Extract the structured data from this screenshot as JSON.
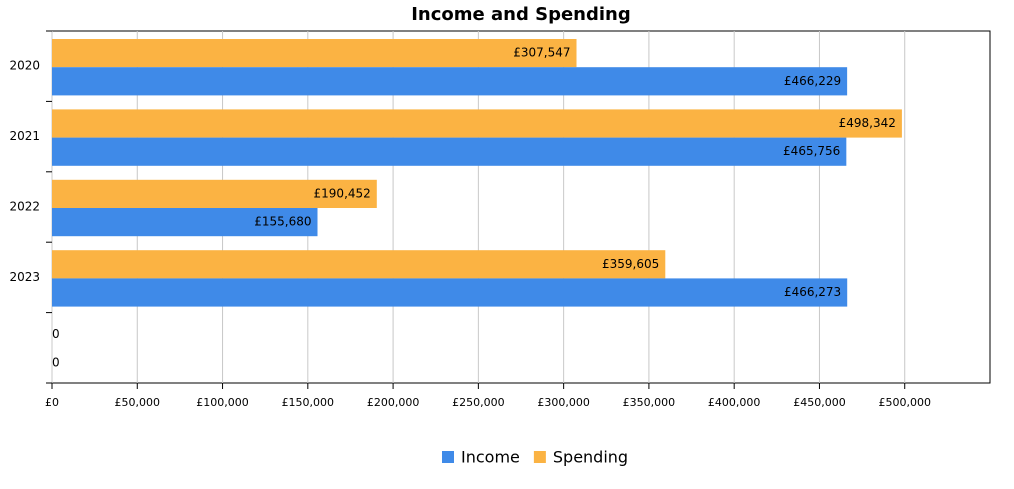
{
  "chart_data": {
    "type": "hbar",
    "title": "Income and Spending",
    "categories": [
      "2020",
      "2021",
      "2022",
      "2023",
      null
    ],
    "series": [
      {
        "name": "Income",
        "color": "#3f8ae8",
        "values": [
          466229,
          465756,
          155680,
          466273,
          0
        ],
        "value_labels": [
          "£466,229",
          "£465,756",
          "£155,680",
          "£466,273",
          "0"
        ]
      },
      {
        "name": "Spending",
        "color": "#fbb343",
        "values": [
          307547,
          498342,
          190452,
          359605,
          0
        ],
        "value_labels": [
          "£307,547",
          "£498,342",
          "£190,452",
          "£359,605",
          "0"
        ]
      }
    ],
    "xlim": [
      0,
      550000
    ],
    "xticks": [
      {
        "value": 0,
        "label": "£0"
      },
      {
        "value": 50000,
        "label": "£50,000"
      },
      {
        "value": 100000,
        "label": "£100,000"
      },
      {
        "value": 150000,
        "label": "£150,000"
      },
      {
        "value": 200000,
        "label": "£200,000"
      },
      {
        "value": 250000,
        "label": "£250,000"
      },
      {
        "value": 300000,
        "label": "£300,000"
      },
      {
        "value": 350000,
        "label": "£350,000"
      },
      {
        "value": 400000,
        "label": "£400,000"
      },
      {
        "value": 450000,
        "label": "£450,000"
      },
      {
        "value": 500000,
        "label": "£500,000"
      }
    ],
    "grid": true,
    "legend": "bottom"
  }
}
